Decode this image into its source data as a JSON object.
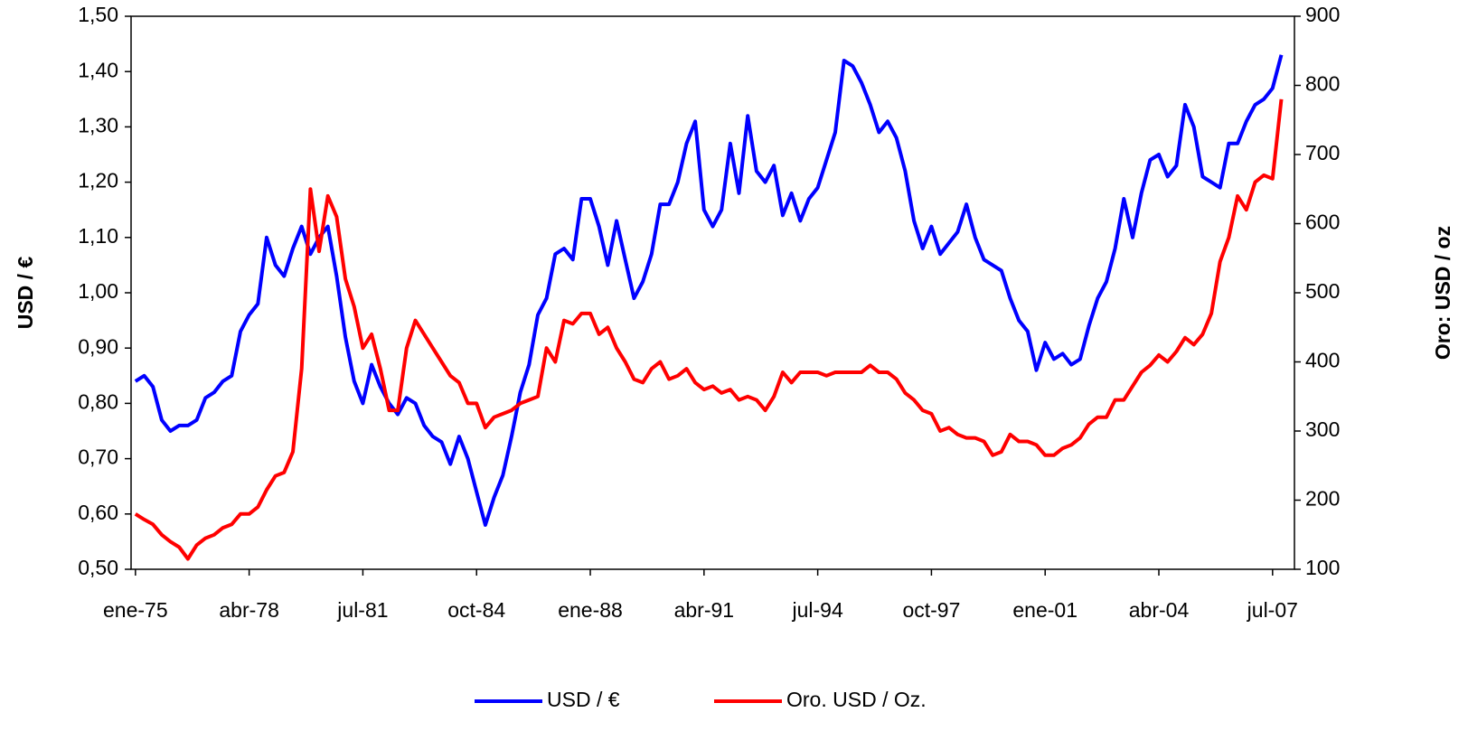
{
  "chart_data": {
    "type": "line",
    "y_label": "USD / €",
    "y2_label": "Oro: USD / oz",
    "categories": [
      "ene-75",
      null,
      null,
      null,
      null,
      null,
      null,
      null,
      null,
      null,
      null,
      null,
      null,
      "abr-78",
      null,
      null,
      null,
      null,
      null,
      null,
      null,
      null,
      null,
      null,
      null,
      null,
      "jul-81",
      null,
      null,
      null,
      null,
      null,
      null,
      null,
      null,
      null,
      null,
      null,
      null,
      "oct-84",
      null,
      null,
      null,
      null,
      null,
      null,
      null,
      null,
      null,
      null,
      null,
      null,
      "ene-88",
      null,
      null,
      null,
      null,
      null,
      null,
      null,
      null,
      null,
      null,
      null,
      null,
      "abr-91",
      null,
      null,
      null,
      null,
      null,
      null,
      null,
      null,
      null,
      null,
      null,
      null,
      "jul-94",
      null,
      null,
      null,
      null,
      null,
      null,
      null,
      null,
      null,
      null,
      null,
      null,
      "oct-97",
      null,
      null,
      null,
      null,
      null,
      null,
      null,
      null,
      null,
      null,
      null,
      null,
      "ene-01",
      null,
      null,
      null,
      null,
      null,
      null,
      null,
      null,
      null,
      null,
      null,
      null,
      "abr-04",
      null,
      null,
      null,
      null,
      null,
      null,
      null,
      null,
      null,
      null,
      null,
      null,
      "jul-07",
      null
    ],
    "series": [
      {
        "name": "USD / €",
        "color": "#0000ff",
        "axis": "y",
        "values": [
          0.84,
          0.85,
          0.83,
          0.77,
          0.75,
          0.76,
          0.76,
          0.77,
          0.81,
          0.82,
          0.84,
          0.85,
          0.93,
          0.96,
          0.98,
          1.1,
          1.05,
          1.03,
          1.08,
          1.12,
          1.07,
          1.1,
          1.12,
          1.03,
          0.92,
          0.84,
          0.8,
          0.87,
          0.83,
          0.8,
          0.78,
          0.81,
          0.8,
          0.76,
          0.74,
          0.73,
          0.69,
          0.74,
          0.7,
          0.64,
          0.58,
          0.63,
          0.67,
          0.74,
          0.82,
          0.87,
          0.96,
          0.99,
          1.07,
          1.08,
          1.06,
          1.17,
          1.17,
          1.12,
          1.05,
          1.13,
          1.06,
          0.99,
          1.02,
          1.07,
          1.16,
          1.16,
          1.2,
          1.27,
          1.31,
          1.15,
          1.12,
          1.15,
          1.27,
          1.18,
          1.32,
          1.22,
          1.2,
          1.23,
          1.14,
          1.18,
          1.13,
          1.17,
          1.19,
          1.24,
          1.29,
          1.42,
          1.41,
          1.38,
          1.34,
          1.29,
          1.31,
          1.28,
          1.22,
          1.13,
          1.08,
          1.12,
          1.07,
          1.09,
          1.11,
          1.16,
          1.1,
          1.06,
          1.05,
          1.04,
          0.99,
          0.95,
          0.93,
          0.86,
          0.91,
          0.88,
          0.89,
          0.87,
          0.88,
          0.94,
          0.99,
          1.02,
          1.08,
          1.17,
          1.1,
          1.18,
          1.24,
          1.25,
          1.21,
          1.23,
          1.34,
          1.3,
          1.21,
          1.2,
          1.19,
          1.27,
          1.27,
          1.31,
          1.34,
          1.35,
          1.37,
          1.43
        ]
      },
      {
        "name": "Oro. USD / Oz.",
        "color": "#ff0000",
        "axis": "y2",
        "values": [
          180,
          172,
          165,
          150,
          140,
          132,
          115,
          135,
          145,
          150,
          160,
          165,
          180,
          180,
          190,
          215,
          235,
          240,
          270,
          390,
          650,
          560,
          640,
          610,
          520,
          480,
          420,
          440,
          390,
          330,
          330,
          420,
          460,
          440,
          420,
          400,
          380,
          370,
          340,
          340,
          305,
          320,
          325,
          330,
          340,
          345,
          350,
          420,
          400,
          460,
          455,
          470,
          470,
          440,
          450,
          420,
          400,
          375,
          370,
          390,
          400,
          375,
          380,
          390,
          370,
          360,
          365,
          355,
          360,
          345,
          350,
          345,
          330,
          350,
          385,
          370,
          385,
          385,
          385,
          380,
          385,
          385,
          385,
          385,
          395,
          385,
          385,
          375,
          355,
          345,
          330,
          325,
          300,
          305,
          295,
          290,
          290,
          285,
          265,
          270,
          295,
          285,
          285,
          280,
          265,
          265,
          275,
          280,
          290,
          310,
          320,
          320,
          345,
          345,
          365,
          385,
          395,
          410,
          400,
          415,
          435,
          425,
          440,
          470,
          545,
          580,
          640,
          620,
          660,
          670,
          665,
          780
        ]
      }
    ],
    "ylim": [
      0.5,
      1.5
    ],
    "yticks": [
      {
        "value": 0.5,
        "label": "0,50"
      },
      {
        "value": 0.6,
        "label": "0,60"
      },
      {
        "value": 0.7,
        "label": "0,70"
      },
      {
        "value": 0.8,
        "label": "0,80"
      },
      {
        "value": 0.9,
        "label": "0,90"
      },
      {
        "value": 1.0,
        "label": "1,00"
      },
      {
        "value": 1.1,
        "label": "1,10"
      },
      {
        "value": 1.2,
        "label": "1,20"
      },
      {
        "value": 1.3,
        "label": "1,30"
      },
      {
        "value": 1.4,
        "label": "1,40"
      },
      {
        "value": 1.5,
        "label": "1,50"
      }
    ],
    "y2lim": [
      100,
      900
    ],
    "y2ticks": [
      100,
      200,
      300,
      400,
      500,
      600,
      700,
      800,
      900
    ],
    "legend": "bottom"
  }
}
